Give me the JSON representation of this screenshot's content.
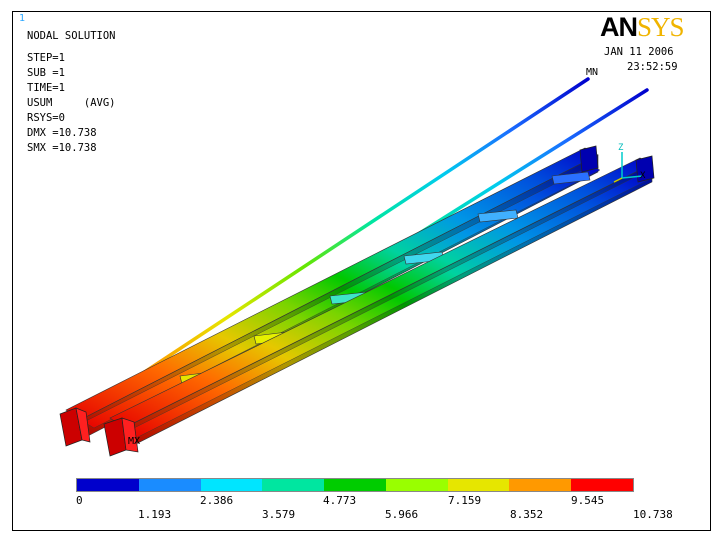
{
  "window_number": "1",
  "logo": {
    "part1": "AN",
    "part2": "SYS"
  },
  "date": "JAN 11 2006",
  "time": "23:52:59",
  "info_lines": [
    "NODAL SOLUTION",
    "STEP=1",
    "SUB =1",
    "TIME=1",
    "USUM     (AVG)",
    "RSYS=0",
    "DMX =10.738",
    "SMX =10.738"
  ],
  "markers": {
    "min": "MN",
    "max": "MX"
  },
  "triad": {
    "z": "Z",
    "x": "X"
  },
  "legend": {
    "colors": [
      "#0000cc",
      "#1a8cff",
      "#00e5ff",
      "#00e6a0",
      "#00cc00",
      "#99ff00",
      "#e6e600",
      "#ff9900",
      "#ff0000"
    ],
    "labels_top": [
      "0",
      "2.386",
      "4.773",
      "7.159",
      "9.545"
    ],
    "labels_bottom": [
      "1.193",
      "3.579",
      "5.966",
      "8.352",
      "10.738"
    ]
  }
}
